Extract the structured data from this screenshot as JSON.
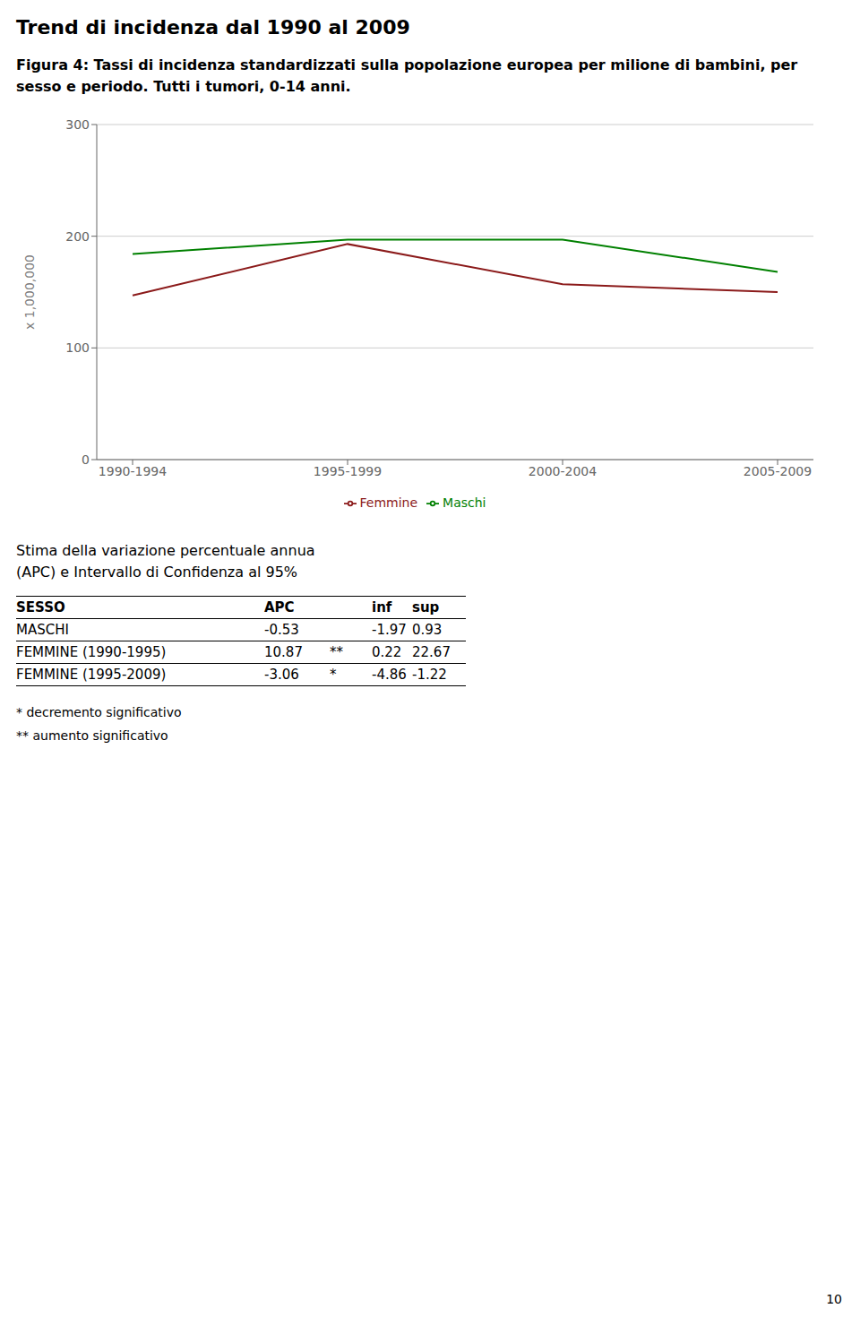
{
  "chart_data": {
    "type": "line",
    "title": "Trend di incidenza dal 1990 al 2009",
    "subtitle": [
      "Figura 4: Tassi di incidenza standardizzati sulla popolazione europea per milione di bambini, per",
      "sesso e periodo. Tutti i tumori, 0-14 anni."
    ],
    "categories": [
      "1990-1994",
      "1995-1999",
      "2000-2004",
      "2005-2009"
    ],
    "series": [
      {
        "name": "Maschi",
        "color": "#008000",
        "values": [
          184,
          197,
          197,
          168
        ]
      },
      {
        "name": "Femmine",
        "color": "#8B1A1A",
        "values": [
          147,
          193,
          157,
          150
        ]
      }
    ],
    "y_label": "x 1,000,000",
    "ylim": [
      0,
      300
    ],
    "yticks": [
      0,
      100,
      200,
      300
    ],
    "grid": true,
    "legend": "bottom",
    "table": {
      "title": [
        "Stima della variazione percentuale annua",
        "(APC) e Intervallo di Confidenza al 95%"
      ],
      "columns": [
        "SESSO",
        "APC",
        null,
        "inf",
        "sup"
      ],
      "rows": [
        [
          "MASCHI",
          "-0.53",
          null,
          "-1.97",
          "0.93"
        ],
        [
          "FEMMINE (1990-1995)",
          "10.87",
          "**",
          "0.22",
          "22.67"
        ],
        [
          "FEMMINE (1995-2009)",
          "-3.06",
          "*",
          "-4.86",
          "-1.22"
        ]
      ]
    },
    "notes": [
      "* decremento significativo",
      "** aumento significativo"
    ],
    "page_number": "10"
  }
}
